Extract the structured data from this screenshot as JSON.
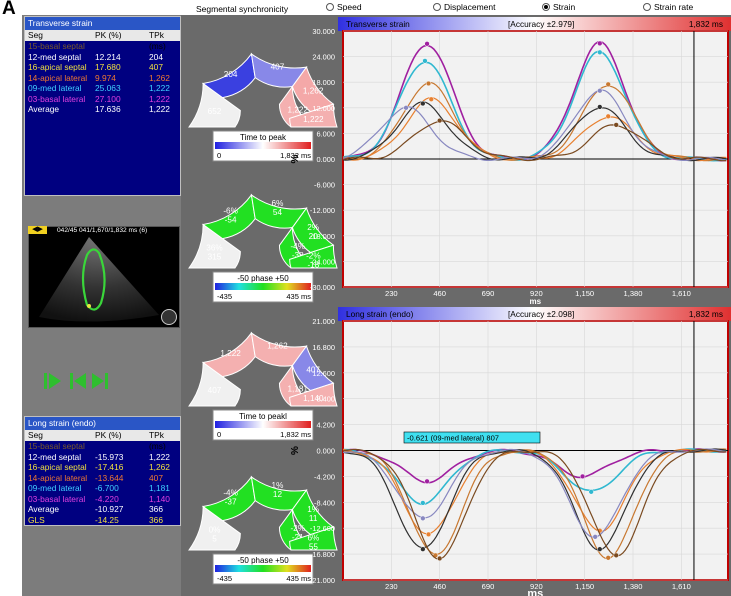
{
  "figure_letter": "A",
  "segmental_title": "Segmental synchronicity",
  "radio_options": [
    {
      "label": "Speed",
      "selected": false
    },
    {
      "label": "Displacement",
      "selected": false
    },
    {
      "label": "Strain",
      "selected": true
    },
    {
      "label": "Strain rate",
      "selected": false
    }
  ],
  "transverse_table": {
    "title": "Transverse strain",
    "col_seg": "Seg",
    "col_pk": "PK (%)",
    "col_tpk": "TPk (ms)",
    "rows": [
      {
        "seg": "15-basal septal",
        "pk": "",
        "tpk": "",
        "color": "#7a5a2a"
      },
      {
        "seg": "12-med septal",
        "pk": "12.214",
        "tpk": "204",
        "color": "#ffffff"
      },
      {
        "seg": "16-apical septal",
        "pk": "17.680",
        "tpk": "407",
        "color": "#f0e040"
      },
      {
        "seg": "14-apical lateral",
        "pk": "9.974",
        "tpk": "1,262",
        "color": "#f07830"
      },
      {
        "seg": "09-med lateral",
        "pk": "25.063",
        "tpk": "1,222",
        "color": "#40d0ff"
      },
      {
        "seg": "03-basal lateral",
        "pk": "27.100",
        "tpk": "1,222",
        "color": "#e040e0"
      },
      {
        "seg": "Average",
        "pk": "17.636",
        "tpk": "1,222",
        "color": "#ffffff"
      }
    ]
  },
  "long_table": {
    "title": "Long strain (endo)",
    "col_seg": "Seg",
    "col_pk": "PK (%)",
    "col_tpk": "TPk (ms)",
    "rows": [
      {
        "seg": "15-basal septal",
        "pk": "",
        "tpk": "",
        "color": "#7a5a2a"
      },
      {
        "seg": "12-med septal",
        "pk": "-15.973",
        "tpk": "1,222",
        "color": "#ffffff"
      },
      {
        "seg": "16-apical septal",
        "pk": "-17.416",
        "tpk": "1,262",
        "color": "#f0e040"
      },
      {
        "seg": "14-apical lateral",
        "pk": "-13.644",
        "tpk": "407",
        "color": "#f07830"
      },
      {
        "seg": "09-med lateral",
        "pk": "-6.700",
        "tpk": "1,181",
        "color": "#40d0ff"
      },
      {
        "seg": "03-basal lateral",
        "pk": "-4.220",
        "tpk": "1,140",
        "color": "#e040e0"
      },
      {
        "seg": "Average",
        "pk": "-10.927",
        "tpk": "366",
        "color": "#ffffff"
      },
      {
        "seg": "GLS",
        "pk": "-14.25",
        "tpk": "366",
        "color": "#f0e040"
      }
    ]
  },
  "echo": {
    "label": "042/45 041/1,670/1,832 ms (6)"
  },
  "bullseyes": [
    {
      "segments": [
        "652",
        "204",
        "407",
        "1,262",
        "1,222",
        "1,222"
      ],
      "legend_title": "Time to peak",
      "legend_min": "0",
      "legend_max": "1,832 ms"
    },
    {
      "segments": [
        "36%\n315",
        "-6%\n-54",
        "6%\n54",
        "2%\n20",
        "-4%\n-38",
        "-2%\n-18"
      ],
      "legend_title": "-50 phase +50",
      "legend_min": "-435",
      "legend_max": "435 ms"
    },
    {
      "segments": [
        "407",
        "1,222",
        "1,262",
        "407",
        "1,181",
        "1,140"
      ],
      "legend_title": "Time to peakl",
      "legend_min": "0",
      "legend_max": "1,832 ms"
    },
    {
      "segments": [
        "0%\n5",
        "-4%\n-37",
        "1%\n12",
        "1%\n11",
        "-2%\n-21",
        "6%\n55"
      ],
      "legend_title": "-50 phase +50",
      "legend_min": "-435",
      "legend_max": "435 ms"
    }
  ],
  "chart_data": [
    {
      "type": "line",
      "title": "Transverse strain",
      "accuracy": "[Accuracy ±2.979]",
      "time_label": "1,832 ms",
      "ylabel": "%",
      "xlabel": "ms",
      "ylim": [
        -30,
        30
      ],
      "xlim": [
        0,
        1832
      ],
      "yticks": [
        "30.000",
        "24.000",
        "18.000",
        "12.000",
        "6.000",
        "0.000",
        "-6.000",
        "-12.000",
        "-18.000",
        "-24.000",
        "-30.000"
      ],
      "xticks": [
        "230",
        "460",
        "690",
        "920",
        "1,150",
        "1,380",
        "1,610"
      ],
      "series": [
        {
          "color": "#a020a0",
          "peaks": [
            [
              400,
              27
            ],
            [
              1222,
              27.1
            ]
          ]
        },
        {
          "color": "#30b8d0",
          "peaks": [
            [
              390,
              23
            ],
            [
              1222,
              25
            ]
          ]
        },
        {
          "color": "#c87830",
          "peaks": [
            [
              407,
              17.7
            ],
            [
              1262,
              17.5
            ]
          ]
        },
        {
          "color": "#e88030",
          "peaks": [
            [
              420,
              14
            ],
            [
              1262,
              10
            ]
          ]
        },
        {
          "color": "#303030",
          "peaks": [
            [
              380,
              13
            ],
            [
              1222,
              12.2
            ]
          ]
        },
        {
          "color": "#8888c0",
          "peaks": [
            [
              300,
              12
            ],
            [
              1222,
              16
            ]
          ]
        },
        {
          "color": "#7a4a20",
          "peaks": [
            [
              460,
              9
            ],
            [
              1300,
              8
            ]
          ]
        }
      ]
    },
    {
      "type": "line",
      "title": "Long strain (endo)",
      "accuracy": "[Accuracy ±2.098]",
      "time_label": "1,832 ms",
      "ylabel": "%",
      "xlabel": "ms",
      "ylim": [
        -21,
        21
      ],
      "xlim": [
        0,
        1832
      ],
      "yticks": [
        "21.000",
        "16.800",
        "12.600",
        "8.400",
        "4.200",
        "0.000",
        "-4.200",
        "-8.400",
        "-12.600",
        "-16.800",
        "-21.000"
      ],
      "xticks": [
        "230",
        "460",
        "690",
        "920",
        "1,150",
        "1,380",
        "1,610"
      ],
      "annotation": "-0.621 (09-med lateral) 807",
      "series": [
        {
          "color": "#a020a0",
          "peaks": [
            [
              400,
              -5
            ],
            [
              1140,
              -4.2
            ]
          ]
        },
        {
          "color": "#30b8d0",
          "peaks": [
            [
              380,
              -8.5
            ],
            [
              1181,
              -6.7
            ]
          ]
        },
        {
          "color": "#e88030",
          "peaks": [
            [
              407,
              -13.6
            ],
            [
              1222,
              -13
            ]
          ]
        },
        {
          "color": "#c87830",
          "peaks": [
            [
              440,
              -17
            ],
            [
              1262,
              -17.4
            ]
          ]
        },
        {
          "color": "#303030",
          "peaks": [
            [
              380,
              -16
            ],
            [
              1222,
              -16
            ]
          ]
        },
        {
          "color": "#8888c0",
          "peaks": [
            [
              380,
              -11
            ],
            [
              1200,
              -14
            ]
          ]
        },
        {
          "color": "#7a4a20",
          "peaks": [
            [
              460,
              -17.5
            ],
            [
              1300,
              -17
            ]
          ]
        }
      ]
    }
  ]
}
